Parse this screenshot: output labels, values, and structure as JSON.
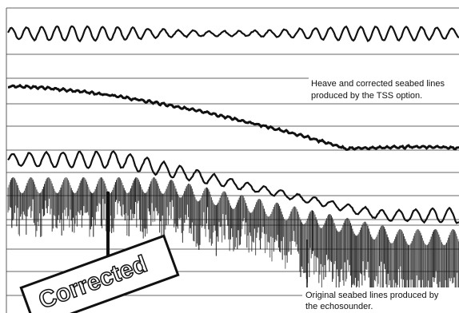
{
  "annotations": {
    "top": [
      "Heave and corrected seabed lines",
      "produced by the TSS option."
    ],
    "bottom": [
      "Original seabed lines produced by",
      "the echosounder."
    ]
  },
  "stamp": "Corrected"
}
